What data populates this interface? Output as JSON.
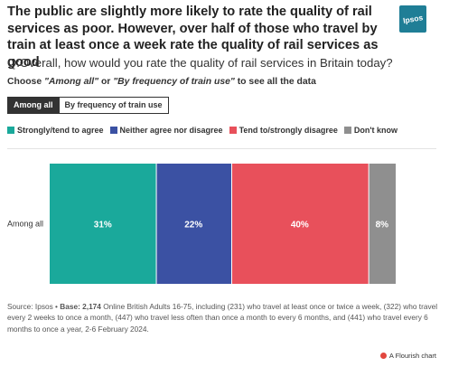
{
  "header": {
    "title": "The public are slightly more likely to rate the quality of rail services as poor. However, over half of those who travel by train at least once a week rate the quality of rail services as good",
    "logo_text": "Ipsos",
    "question": "Q:Overall, how would you rate the quality of rail services in Britain today?",
    "choose_prefix": "Choose ",
    "choose_opt1": "\"Among all\"",
    "choose_mid": " or ",
    "choose_opt2": "\"By frequency of train use\"",
    "choose_suffix": " to see all the data"
  },
  "toggle": {
    "options": [
      "Among all",
      "By frequency of train use"
    ],
    "selected": "Among all"
  },
  "chart_data": {
    "type": "bar",
    "orientation": "horizontal",
    "stacked": true,
    "categories": [
      "Among all"
    ],
    "series": [
      {
        "name": "Strongly/tend to agree",
        "values": [
          31
        ],
        "color": "#1aa99b"
      },
      {
        "name": "Neither agree nor disagree",
        "values": [
          22
        ],
        "color": "#3b51a3"
      },
      {
        "name": "Tend to/strongly disagree",
        "values": [
          40
        ],
        "color": "#e8505b"
      },
      {
        "name": "Don't know",
        "values": [
          8
        ],
        "color": "#8f8f8f"
      }
    ],
    "data_labels": [
      "31%",
      "22%",
      "40%",
      "8%"
    ],
    "legend_position": "top-left",
    "grid": false
  },
  "source": {
    "prefix": "Source: Ipsos • ",
    "base_label": "Base: 2,174",
    "text": " Online British Adults 16-75, including (231) who travel at least once or twice a week, (322) who travel every 2 weeks to once a month, (447) who travel less often than once a month to every 6 months, and (441) who travel every 6 months to once a year, 2-6 February 2024."
  },
  "footer": {
    "text": "A Flourish chart"
  }
}
